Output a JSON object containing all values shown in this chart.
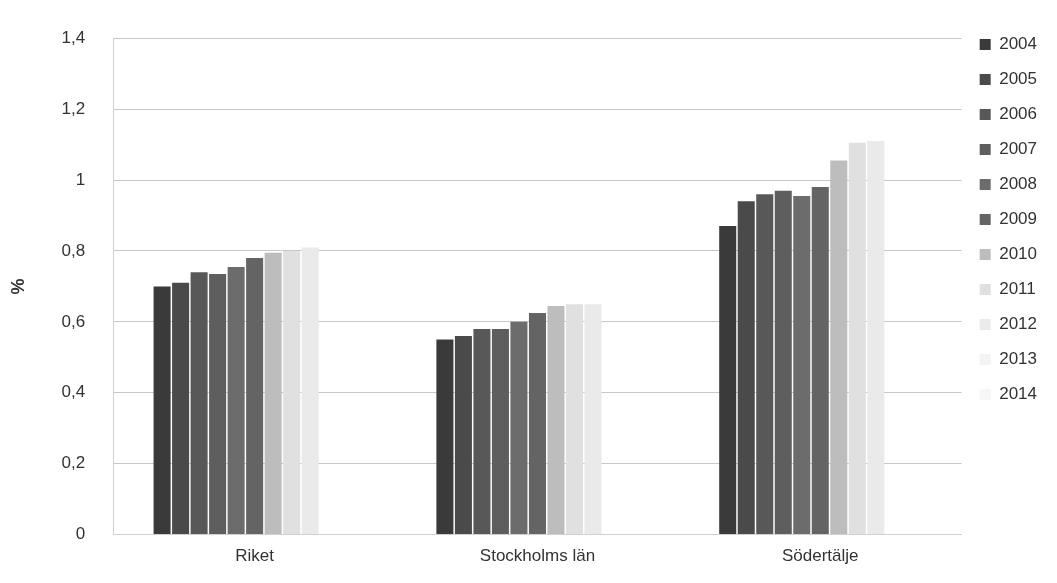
{
  "chart_data": {
    "type": "bar",
    "ylabel": "%",
    "categories": [
      "Riket",
      "Stockholms län",
      "Södertälje"
    ],
    "series": [
      {
        "name": "2004",
        "color": "#3a3a3a",
        "values": [
          0.7,
          0.55,
          0.87
        ]
      },
      {
        "name": "2005",
        "color": "#4a4a4a",
        "values": [
          0.71,
          0.56,
          0.94
        ]
      },
      {
        "name": "2006",
        "color": "#585858",
        "values": [
          0.74,
          0.58,
          0.96
        ]
      },
      {
        "name": "2007",
        "color": "#5e5e5e",
        "values": [
          0.735,
          0.58,
          0.97
        ]
      },
      {
        "name": "2008",
        "color": "#6c6c6c",
        "values": [
          0.755,
          0.6,
          0.955
        ]
      },
      {
        "name": "2009",
        "color": "#646464",
        "values": [
          0.78,
          0.625,
          0.98
        ]
      },
      {
        "name": "2010",
        "color": "#bdbdbd",
        "values": [
          0.795,
          0.645,
          1.055
        ]
      },
      {
        "name": "2011",
        "color": "#e0e0e0",
        "values": [
          0.8,
          0.65,
          1.105
        ]
      },
      {
        "name": "2012",
        "color": "#eaeaea",
        "values": [
          0.81,
          0.65,
          1.11
        ]
      },
      {
        "name": "2013",
        "color": "#f3f3f3",
        "values": [
          null,
          null,
          null
        ]
      },
      {
        "name": "2014",
        "color": "#f7f7f7",
        "values": [
          null,
          null,
          null
        ]
      }
    ],
    "ylim": [
      0,
      1.4
    ],
    "yticks": [
      {
        "value": 0,
        "label": "0"
      },
      {
        "value": 0.2,
        "label": "0,2"
      },
      {
        "value": 0.4,
        "label": "0,4"
      },
      {
        "value": 0.6,
        "label": "0,6"
      },
      {
        "value": 0.8,
        "label": "0,8"
      },
      {
        "value": 1,
        "label": "1"
      },
      {
        "value": 1.2,
        "label": "1,2"
      },
      {
        "value": 1.4,
        "label": "1,4"
      }
    ],
    "grid": "y",
    "legend": "right"
  }
}
